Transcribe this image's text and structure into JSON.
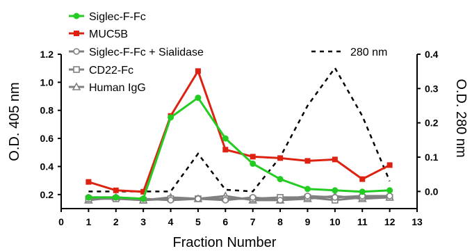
{
  "chart_data": {
    "type": "line",
    "xlabel": "Fraction Number",
    "ylabel": "O.D. 405 nm",
    "y2label": "O.D. 280 nm",
    "xlim": [
      0,
      13
    ],
    "ylim": [
      0.1,
      1.2
    ],
    "y2lim": [
      -0.05,
      0.4
    ],
    "x_ticks": [
      "0",
      "1",
      "2",
      "3",
      "4",
      "5",
      "6",
      "7",
      "8",
      "9",
      "10",
      "11",
      "12",
      "13"
    ],
    "y_ticks": [
      "0.2",
      "0.4",
      "0.6",
      "0.8",
      "1.0",
      "1.2"
    ],
    "y2_ticks": [
      "0.0",
      "0.1",
      "0.2",
      "0.3",
      "0.4"
    ],
    "x": [
      1,
      2,
      3,
      4,
      5,
      6,
      7,
      8,
      9,
      10,
      11,
      12
    ],
    "series": [
      {
        "name": "Siglec-F-Fc",
        "axis": "left",
        "marker": "circle-filled",
        "color": "#22cc22",
        "values": [
          0.18,
          0.18,
          0.17,
          0.75,
          0.89,
          0.6,
          0.42,
          0.31,
          0.24,
          0.23,
          0.22,
          0.23
        ]
      },
      {
        "name": "MUC5B",
        "axis": "left",
        "marker": "square-filled",
        "color": "#dd2211",
        "values": [
          0.29,
          0.23,
          0.22,
          0.76,
          1.08,
          0.52,
          0.47,
          0.46,
          0.44,
          0.45,
          0.31,
          0.41
        ]
      },
      {
        "name": "Siglec-F-Fc + Sialidase",
        "axis": "left",
        "marker": "circle-open",
        "color": "#808080",
        "values": [
          0.18,
          0.18,
          0.17,
          0.16,
          0.17,
          0.16,
          0.18,
          0.16,
          0.19,
          0.18,
          0.19,
          0.19
        ]
      },
      {
        "name": "CD22-Fc",
        "axis": "left",
        "marker": "square-open",
        "color": "#808080",
        "values": [
          0.17,
          0.17,
          0.16,
          0.17,
          0.17,
          0.17,
          0.17,
          0.18,
          0.18,
          0.16,
          0.18,
          0.18
        ]
      },
      {
        "name": "Human IgG",
        "axis": "left",
        "marker": "triangle-open",
        "color": "#808080",
        "values": [
          0.16,
          0.18,
          0.16,
          0.18,
          0.17,
          0.19,
          0.16,
          0.16,
          0.17,
          0.19,
          0.17,
          0.18
        ]
      },
      {
        "name": "280 nm",
        "axis": "right",
        "marker": "none",
        "style": "dashed",
        "color": "#000000",
        "values": [
          0.0,
          0.0,
          0.0,
          0.0,
          0.11,
          0.005,
          0.0,
          0.1,
          0.25,
          0.36,
          0.22,
          0.03
        ]
      }
    ],
    "legend_position": "top-left",
    "grid": false
  }
}
